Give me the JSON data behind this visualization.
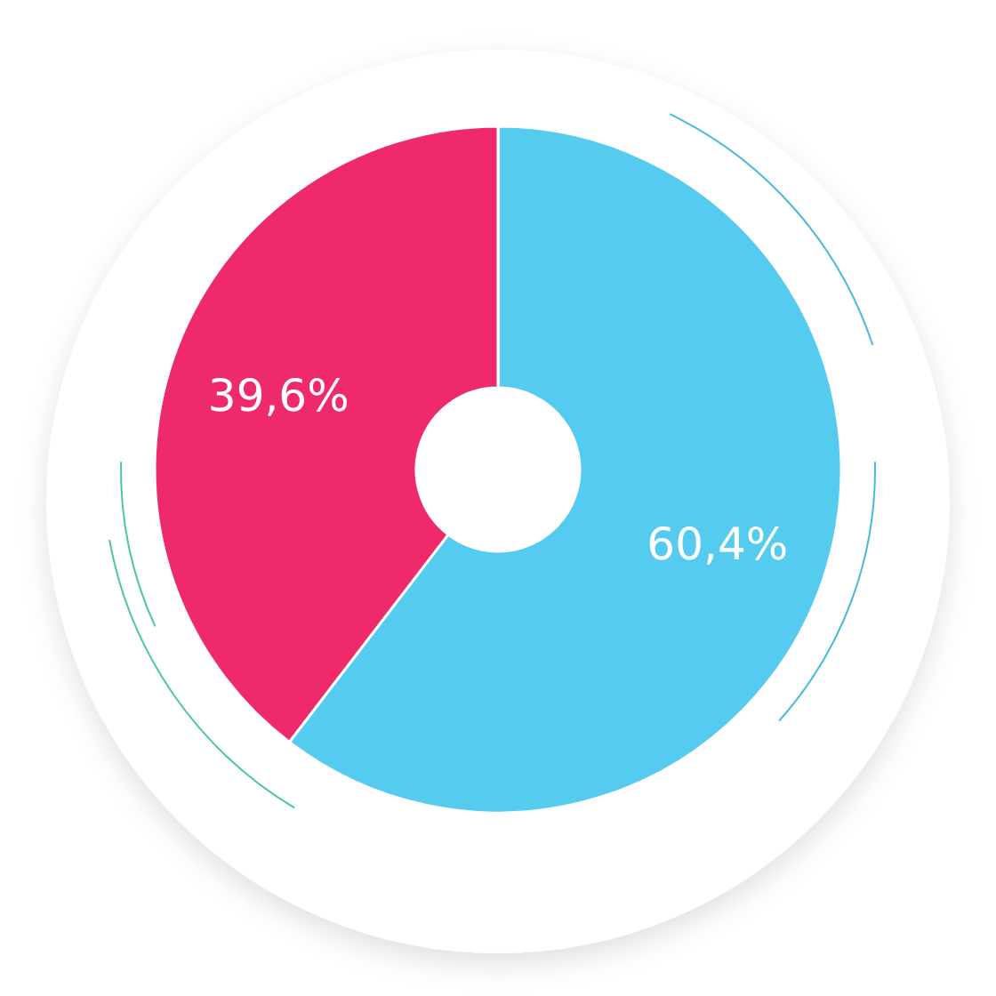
{
  "chart_data": {
    "type": "donut",
    "categories": [
      null,
      null
    ],
    "values": [
      60.4,
      39.6
    ],
    "colors": [
      "#56cbf0",
      "#ef2a6b"
    ],
    "value_labels": [
      "60,4%",
      "39,6%"
    ]
  }
}
